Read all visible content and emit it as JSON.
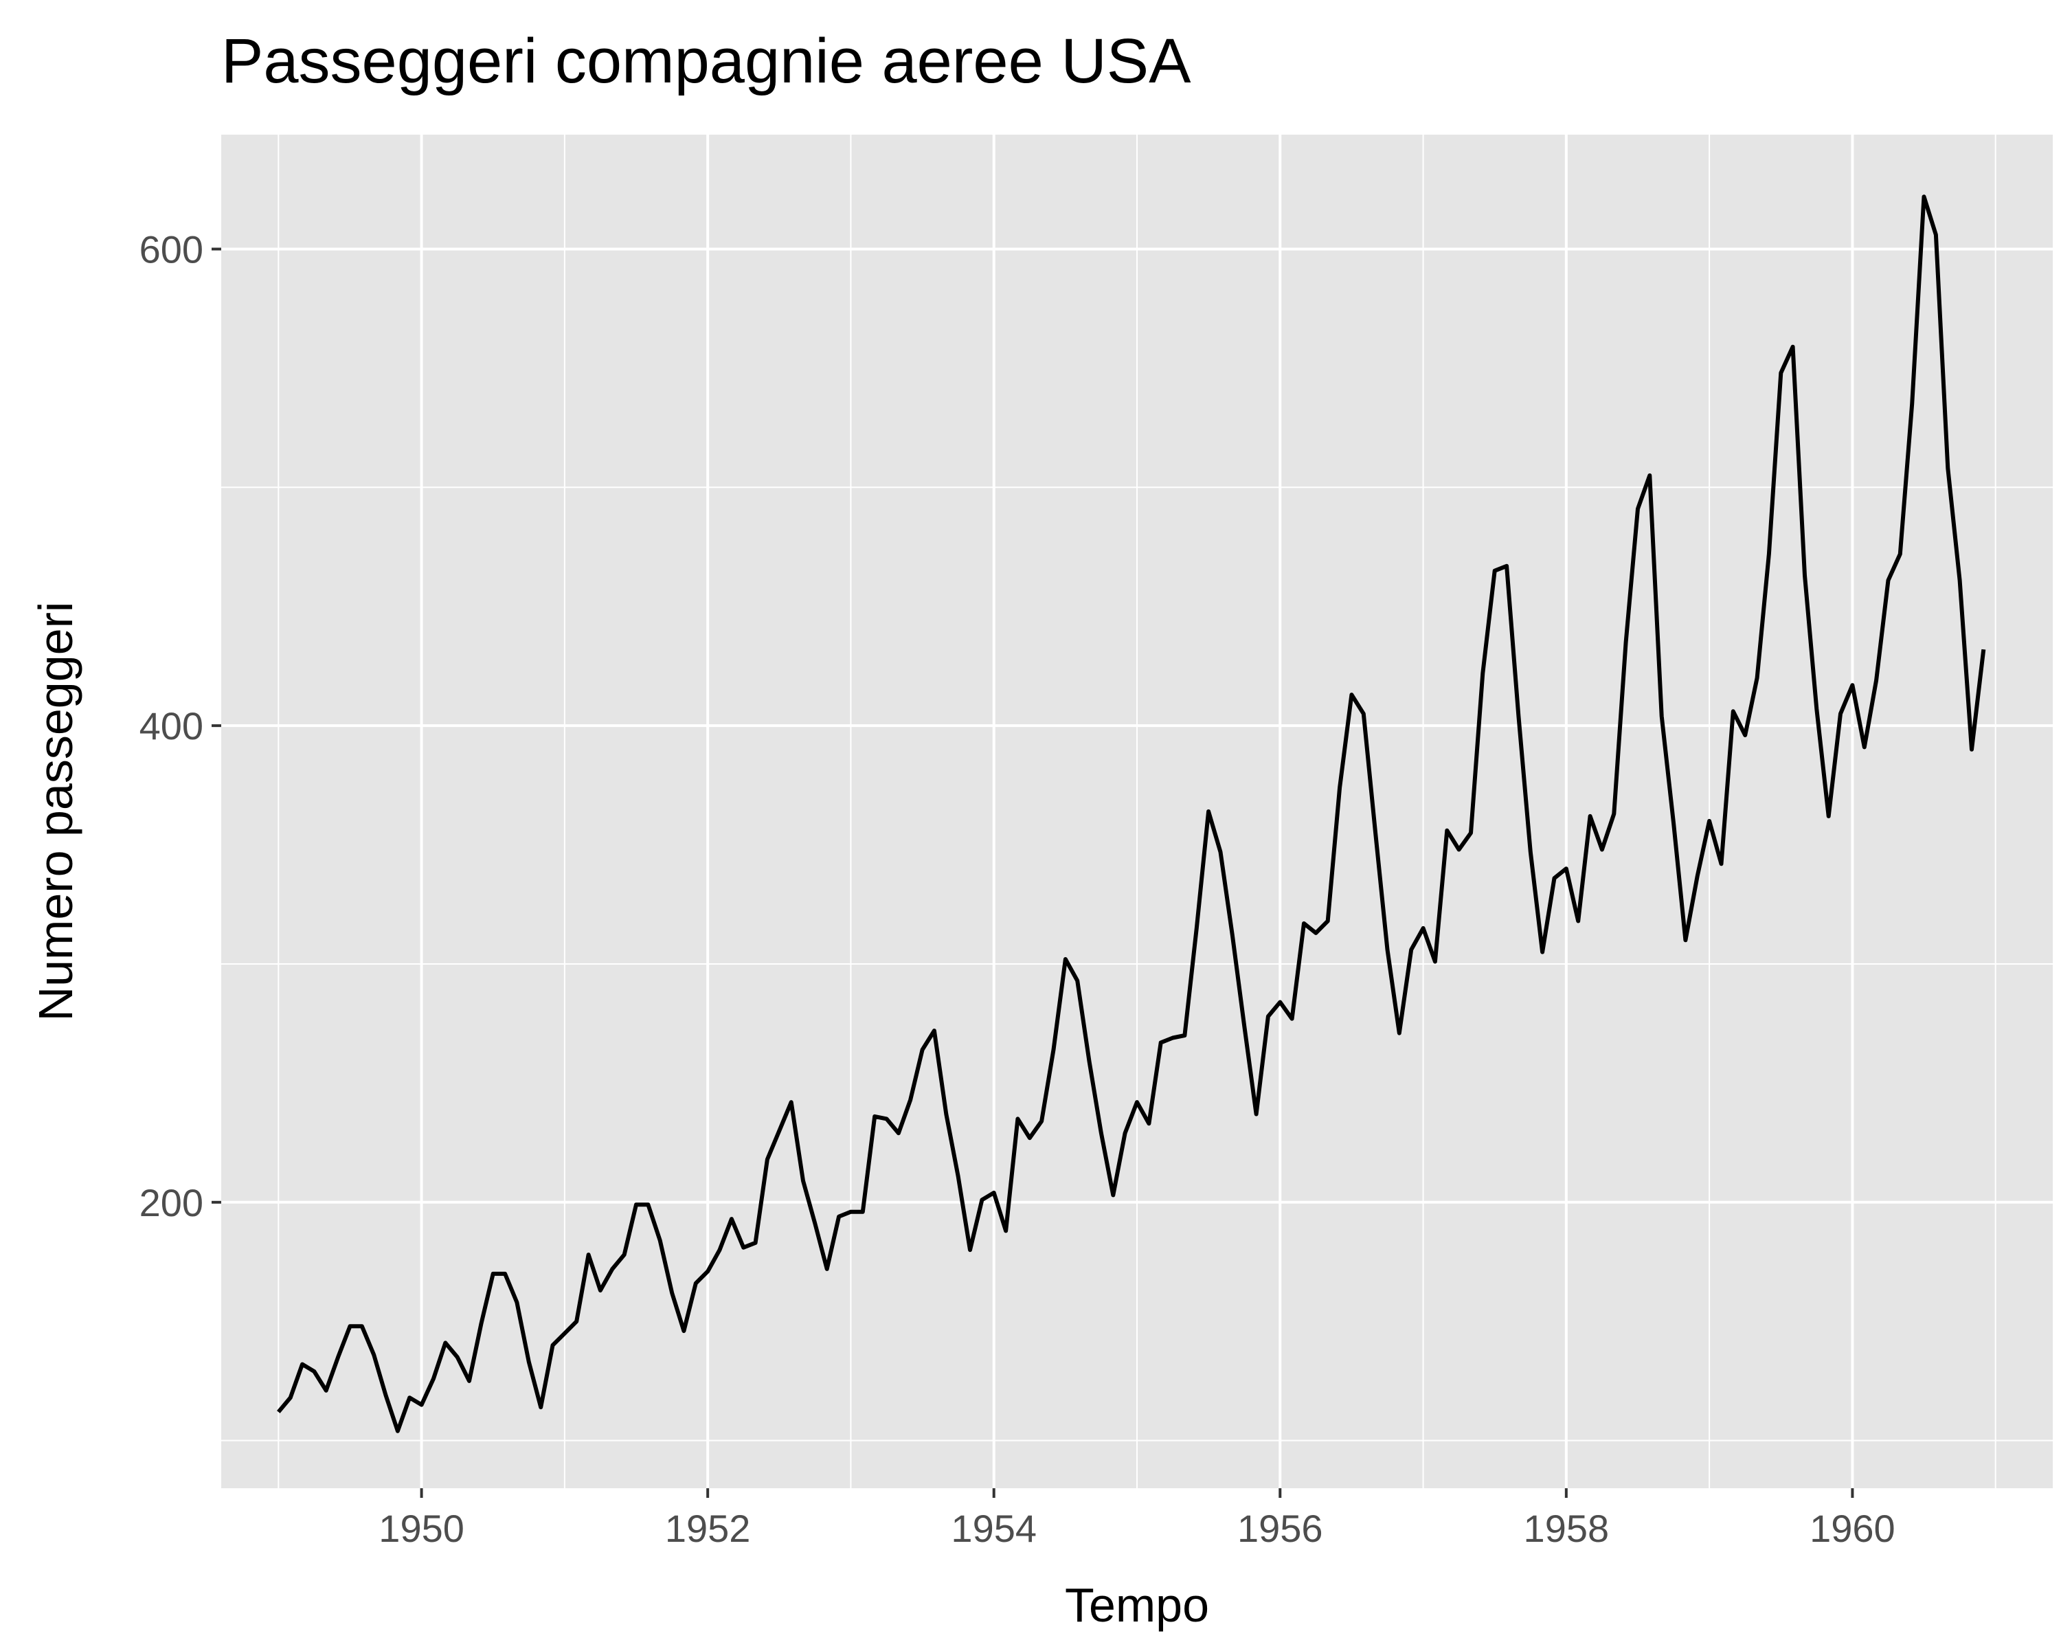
{
  "chart_data": {
    "type": "line",
    "title": "Passeggeri compagnie aeree USA",
    "xlabel": "Tempo",
    "ylabel": "Numero passeggeri",
    "xlim": [
      1948.6,
      1961.4
    ],
    "ylim": [
      80,
      648
    ],
    "x_ticks": [
      1950,
      1952,
      1954,
      1956,
      1958,
      1960
    ],
    "y_ticks": [
      200,
      400,
      600
    ],
    "x_minor_grid": [
      1949,
      1951,
      1953,
      1955,
      1957,
      1959,
      1961
    ],
    "y_minor_grid": [
      100,
      300,
      500
    ],
    "grid": true,
    "x_start": 1949,
    "x_step_per_point": 0.08333333,
    "series": [
      {
        "values": [
          112,
          118,
          132,
          129,
          121,
          135,
          148,
          148,
          136,
          119,
          104,
          118,
          115,
          126,
          141,
          135,
          125,
          149,
          170,
          170,
          158,
          133,
          114,
          140,
          145,
          150,
          178,
          163,
          172,
          178,
          199,
          199,
          184,
          162,
          146,
          166,
          171,
          180,
          193,
          181,
          183,
          218,
          230,
          242,
          209,
          191,
          172,
          194,
          196,
          196,
          236,
          235,
          229,
          243,
          264,
          272,
          237,
          211,
          180,
          201,
          204,
          188,
          235,
          227,
          234,
          264,
          302,
          293,
          259,
          229,
          203,
          229,
          242,
          233,
          267,
          269,
          270,
          315,
          364,
          347,
          312,
          274,
          237,
          278,
          284,
          277,
          317,
          313,
          318,
          374,
          413,
          405,
          355,
          306,
          271,
          306,
          315,
          301,
          356,
          348,
          355,
          422,
          465,
          467,
          404,
          347,
          305,
          336,
          340,
          318,
          362,
          348,
          363,
          435,
          491,
          505,
          404,
          359,
          310,
          337,
          360,
          342,
          406,
          396,
          420,
          472,
          548,
          559,
          463,
          407,
          362,
          405,
          417,
          391,
          419,
          461,
          472,
          535,
          622,
          606,
          508,
          461,
          390,
          432
        ]
      }
    ],
    "colors": {
      "panel_background": "#e5e5e5",
      "grid": "#ffffff",
      "line": "#000000",
      "tick_label": "#4d4d4d",
      "tick_mark": "#333333"
    }
  }
}
